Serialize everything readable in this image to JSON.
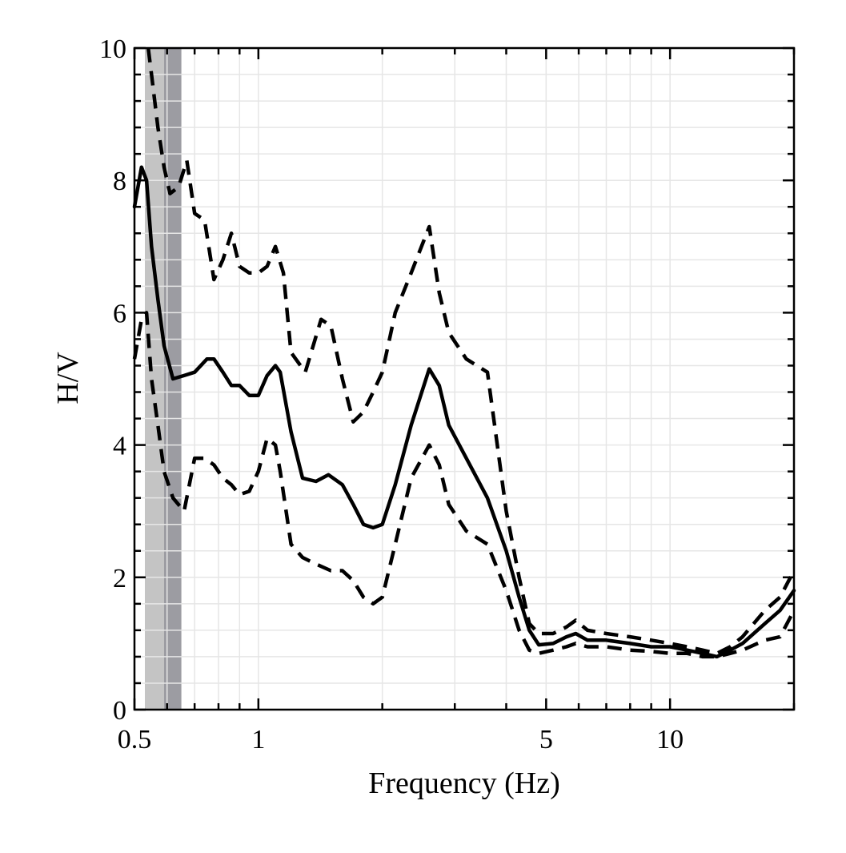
{
  "chart_data": {
    "type": "line",
    "title": "",
    "xlabel": "Frequency (Hz)",
    "ylabel": "H/V",
    "xscale": "log",
    "xlim": [
      0.5,
      20
    ],
    "ylim": [
      0,
      10
    ],
    "grid": true,
    "x_ticks": [
      {
        "value": 0.5,
        "label": "0.5"
      },
      {
        "value": 1,
        "label": "1"
      },
      {
        "value": 5,
        "label": "5"
      },
      {
        "value": 10,
        "label": "10"
      }
    ],
    "y_ticks": [
      {
        "value": 0,
        "label": "0"
      },
      {
        "value": 2,
        "label": "2"
      },
      {
        "value": 4,
        "label": "4"
      },
      {
        "value": 6,
        "label": "6"
      },
      {
        "value": 8,
        "label": "8"
      },
      {
        "value": 10,
        "label": "10"
      }
    ],
    "shaded_bands": [
      {
        "x_start": 0.53,
        "x_end": 0.59,
        "color": "#c4c4c4"
      },
      {
        "x_start": 0.59,
        "x_end": 0.65,
        "color": "#9c9ca2"
      }
    ],
    "series": [
      {
        "style": "solid",
        "x": [
          0.5,
          0.52,
          0.535,
          0.55,
          0.57,
          0.59,
          0.62,
          0.66,
          0.7,
          0.75,
          0.78,
          0.82,
          0.86,
          0.9,
          0.95,
          1.0,
          1.05,
          1.1,
          1.13,
          1.2,
          1.28,
          1.38,
          1.48,
          1.6,
          1.7,
          1.8,
          1.9,
          2.0,
          2.15,
          2.35,
          2.6,
          2.75,
          2.9,
          3.2,
          3.6,
          4.0,
          4.3,
          4.55,
          4.8,
          5.2,
          5.6,
          5.9,
          6.3,
          7.0,
          8.0,
          9.0,
          10.0,
          11.0,
          12.0,
          13.0,
          14.0,
          15.0,
          17.0,
          18.5,
          20.0
        ],
        "y": [
          7.6,
          8.2,
          8.0,
          7.0,
          6.2,
          5.5,
          5.0,
          5.05,
          5.1,
          5.3,
          5.3,
          5.1,
          4.9,
          4.9,
          4.75,
          4.75,
          5.05,
          5.2,
          5.1,
          4.2,
          3.5,
          3.45,
          3.55,
          3.4,
          3.1,
          2.8,
          2.75,
          2.8,
          3.4,
          4.3,
          5.15,
          4.9,
          4.3,
          3.8,
          3.2,
          2.4,
          1.7,
          1.2,
          0.98,
          1.0,
          1.1,
          1.15,
          1.05,
          1.05,
          1.0,
          0.95,
          0.95,
          0.9,
          0.85,
          0.8,
          0.9,
          1.0,
          1.3,
          1.5,
          1.8
        ]
      },
      {
        "style": "dashed",
        "x": [
          0.54,
          0.55,
          0.57,
          0.59,
          0.61,
          0.64,
          0.67,
          0.7,
          0.74,
          0.78,
          0.82,
          0.86,
          0.9,
          0.95,
          1.0,
          1.05,
          1.1,
          1.15,
          1.2,
          1.3,
          1.42,
          1.5,
          1.6,
          1.7,
          1.8,
          1.9,
          2.0,
          2.15,
          2.35,
          2.6,
          2.75,
          2.9,
          3.2,
          3.6,
          4.0,
          4.3,
          4.55,
          4.8,
          5.2,
          5.6,
          5.9,
          6.3,
          7.0,
          8.0,
          9.0,
          10.0,
          11.0,
          12.0,
          13.0,
          14.0,
          15.0,
          17.0,
          18.5,
          20.0
        ],
        "y": [
          10.0,
          9.6,
          8.8,
          8.2,
          7.8,
          7.9,
          8.3,
          7.5,
          7.4,
          6.5,
          6.8,
          7.2,
          6.7,
          6.6,
          6.6,
          6.7,
          7.0,
          6.6,
          5.4,
          5.1,
          5.9,
          5.8,
          5.0,
          4.35,
          4.5,
          4.8,
          5.1,
          6.0,
          6.6,
          7.3,
          6.3,
          5.7,
          5.3,
          5.1,
          3.0,
          2.0,
          1.3,
          1.15,
          1.15,
          1.25,
          1.35,
          1.2,
          1.15,
          1.1,
          1.05,
          1.0,
          0.95,
          0.9,
          0.85,
          0.95,
          1.1,
          1.5,
          1.7,
          2.1
        ]
      },
      {
        "style": "dashed",
        "x": [
          0.5,
          0.52,
          0.535,
          0.55,
          0.57,
          0.59,
          0.62,
          0.66,
          0.7,
          0.74,
          0.78,
          0.82,
          0.86,
          0.9,
          0.95,
          1.0,
          1.05,
          1.1,
          1.13,
          1.2,
          1.28,
          1.38,
          1.5,
          1.6,
          1.7,
          1.8,
          1.9,
          2.0,
          2.15,
          2.35,
          2.6,
          2.75,
          2.9,
          3.2,
          3.6,
          4.0,
          4.3,
          4.55,
          4.8,
          5.2,
          5.6,
          5.9,
          6.3,
          7.0,
          8.0,
          9.0,
          10.0,
          11.0,
          12.0,
          13.0,
          14.0,
          15.0,
          17.0,
          18.5,
          20.0
        ],
        "y": [
          5.3,
          5.9,
          6.0,
          5.0,
          4.3,
          3.6,
          3.2,
          3.0,
          3.8,
          3.8,
          3.7,
          3.5,
          3.4,
          3.25,
          3.3,
          3.6,
          4.1,
          4.0,
          3.6,
          2.5,
          2.3,
          2.2,
          2.1,
          2.1,
          1.95,
          1.7,
          1.6,
          1.7,
          2.5,
          3.5,
          4.0,
          3.7,
          3.1,
          2.7,
          2.5,
          1.8,
          1.2,
          0.9,
          0.85,
          0.9,
          0.95,
          1.0,
          0.95,
          0.95,
          0.9,
          0.88,
          0.85,
          0.85,
          0.8,
          0.8,
          0.85,
          0.9,
          1.05,
          1.1,
          1.5
        ]
      }
    ]
  }
}
